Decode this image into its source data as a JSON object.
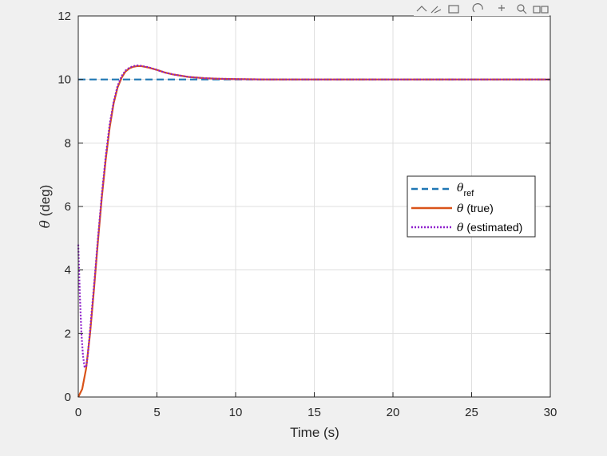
{
  "toolbar": {
    "icons": [
      "export-icon",
      "brush-icon",
      "datatip-icon",
      "rotate-icon",
      "pan-icon",
      "zoom-in-icon",
      "zoom-out-icon",
      "home-icon"
    ]
  },
  "chart_data": {
    "type": "line",
    "xlabel": "Time (s)",
    "ylabel_symbol": "θ",
    "ylabel_rest": " (deg)",
    "xlim": [
      0,
      30
    ],
    "ylim": [
      0,
      12
    ],
    "xticks": [
      0,
      5,
      10,
      15,
      20,
      25,
      30
    ],
    "yticks": [
      0,
      2,
      4,
      6,
      8,
      10,
      12
    ],
    "xtick_labels": [
      "0",
      "5",
      "10",
      "15",
      "20",
      "25",
      "30"
    ],
    "ytick_labels": [
      "0",
      "2",
      "4",
      "6",
      "8",
      "10",
      "12"
    ],
    "grid": true,
    "legend_position": "right",
    "legend": [
      {
        "symbol": "θ",
        "sub": "ref",
        "rest": "",
        "style": "dashed",
        "color": "#1f77b4"
      },
      {
        "symbol": "θ",
        "sub": "",
        "rest": " (true)",
        "style": "solid",
        "color": "#d95319"
      },
      {
        "symbol": "θ",
        "sub": "",
        "rest": " (estimated)",
        "style": "dotted",
        "color": "#8e1ecc"
      }
    ],
    "series": [
      {
        "style": "dashed",
        "color": "#1f77b4",
        "x": [
          0,
          30
        ],
        "y": [
          10,
          10
        ]
      },
      {
        "style": "solid",
        "color": "#d95319",
        "x": [
          0,
          0.25,
          0.5,
          0.75,
          1.0,
          1.25,
          1.5,
          1.75,
          2.0,
          2.25,
          2.5,
          2.75,
          3.0,
          3.25,
          3.5,
          3.75,
          4.0,
          4.5,
          5.0,
          5.5,
          6.0,
          7.0,
          8.0,
          9.0,
          10.0,
          12.0,
          15.0,
          20.0,
          25.0,
          30.0
        ],
        "y": [
          0,
          0.25,
          0.9,
          2.0,
          3.4,
          4.9,
          6.3,
          7.5,
          8.5,
          9.25,
          9.75,
          10.05,
          10.25,
          10.35,
          10.4,
          10.42,
          10.42,
          10.37,
          10.3,
          10.22,
          10.16,
          10.08,
          10.04,
          10.02,
          10.01,
          10.0,
          10.0,
          10.0,
          10.0,
          10.0
        ]
      },
      {
        "style": "dotted",
        "color": "#8e1ecc",
        "x": [
          0,
          0.1,
          0.2,
          0.3,
          0.4,
          0.5,
          0.6,
          0.75,
          1.0,
          1.25,
          1.5,
          1.75,
          2.0,
          2.25,
          2.5,
          2.75,
          3.0,
          3.25,
          3.5,
          3.75,
          4.0,
          4.5,
          5.0,
          5.5,
          6.0,
          7.0,
          8.0,
          9.0,
          10.0,
          12.0,
          15.0,
          20.0,
          25.0,
          30.0
        ],
        "y": [
          4.8,
          3.2,
          2.0,
          1.3,
          0.95,
          0.95,
          1.3,
          2.1,
          3.5,
          5.0,
          6.4,
          7.6,
          8.6,
          9.3,
          9.8,
          10.1,
          10.28,
          10.37,
          10.42,
          10.44,
          10.43,
          10.38,
          10.3,
          10.22,
          10.16,
          10.08,
          10.04,
          10.02,
          10.01,
          10.0,
          10.0,
          10.0,
          10.0,
          10.0
        ]
      }
    ]
  }
}
